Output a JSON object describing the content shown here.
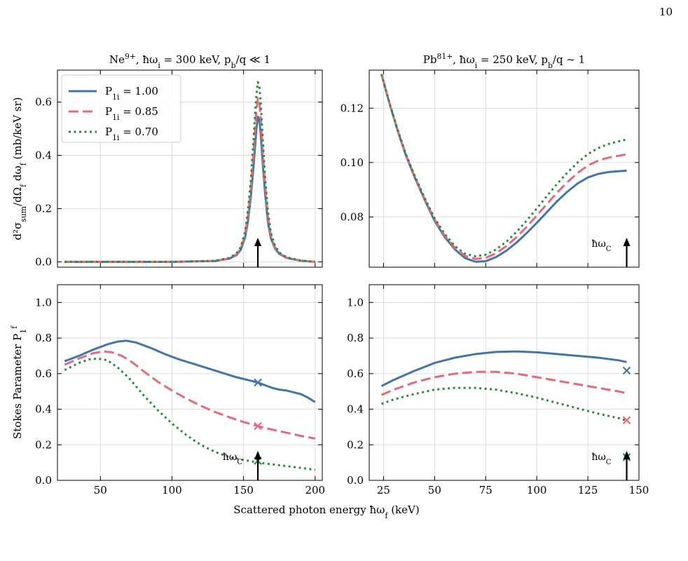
{
  "page_number": "10",
  "shared_xlabel": "Scattered photon energy ħω_f (keV)",
  "colors": {
    "p100": "#4575a8",
    "p085": "#e56a7c",
    "p070": "#2e8b3a"
  },
  "legend": {
    "location": "upper-left",
    "entries": [
      "P_1i = 1.00",
      "P_1i = 0.85",
      "P_1i = 0.70"
    ]
  },
  "chart_data": [
    {
      "id": "top-left",
      "type": "line",
      "title": "Ne^9+, ħω_i = 300 keV, p_b/q ≪ 1",
      "ylabel": "d²σ_sum/dΩ_f dω_f (mb/keV sr)",
      "xlim": [
        20,
        205
      ],
      "ylim": [
        -0.02,
        0.72
      ],
      "xticks": [
        50,
        100,
        150,
        200
      ],
      "show_xticklabels": false,
      "yticks": [
        0.0,
        0.2,
        0.4,
        0.6
      ],
      "ytick_labels": [
        "0.0",
        "0.2",
        "0.4",
        "0.6"
      ],
      "grid": true,
      "arrow": {
        "x": 160,
        "label": ""
      },
      "series": [
        {
          "name": "P_1i = 1.00",
          "color": "#4575a8",
          "dash": "solid",
          "x": [
            25,
            60,
            100,
            130,
            140,
            145,
            148,
            151,
            153,
            155,
            157,
            158,
            159,
            160,
            161,
            162,
            163,
            165,
            167,
            169,
            172,
            175,
            180,
            190,
            200
          ],
          "y": [
            0,
            0,
            0,
            0.003,
            0.012,
            0.025,
            0.045,
            0.09,
            0.15,
            0.24,
            0.36,
            0.43,
            0.5,
            0.545,
            0.535,
            0.48,
            0.4,
            0.26,
            0.15,
            0.09,
            0.05,
            0.03,
            0.015,
            0.004,
            0
          ]
        },
        {
          "name": "P_1i = 0.85",
          "color": "#e56a7c",
          "dash": "dashed",
          "x": [
            25,
            60,
            100,
            130,
            140,
            145,
            148,
            151,
            153,
            155,
            157,
            158,
            159,
            160,
            161,
            162,
            163,
            165,
            167,
            169,
            172,
            175,
            180,
            190,
            200
          ],
          "y": [
            0,
            0,
            0,
            0.003,
            0.013,
            0.028,
            0.05,
            0.1,
            0.17,
            0.27,
            0.41,
            0.49,
            0.57,
            0.615,
            0.6,
            0.54,
            0.45,
            0.29,
            0.17,
            0.1,
            0.055,
            0.032,
            0.016,
            0.004,
            0
          ]
        },
        {
          "name": "P_1i = 0.70",
          "color": "#2e8b3a",
          "dash": "dotted",
          "x": [
            25,
            60,
            100,
            130,
            140,
            145,
            148,
            151,
            153,
            155,
            157,
            158,
            159,
            160,
            161,
            162,
            163,
            165,
            167,
            169,
            172,
            175,
            180,
            190,
            200
          ],
          "y": [
            0,
            0,
            0,
            0.004,
            0.015,
            0.031,
            0.055,
            0.11,
            0.19,
            0.3,
            0.46,
            0.55,
            0.63,
            0.675,
            0.66,
            0.6,
            0.5,
            0.32,
            0.19,
            0.11,
            0.06,
            0.035,
            0.017,
            0.005,
            0
          ]
        }
      ]
    },
    {
      "id": "top-right",
      "type": "line",
      "title": "Pb^81+, ħω_i = 250 keV, p_b/q ∼ 1",
      "ylabel": "",
      "xlim": [
        18,
        150
      ],
      "ylim": [
        0.0615,
        0.134
      ],
      "xticks": [
        25,
        50,
        75,
        100,
        125,
        150
      ],
      "show_xticklabels": false,
      "yticks": [
        0.08,
        0.1,
        0.12
      ],
      "ytick_labels": [
        "0.08",
        "0.10",
        "0.12"
      ],
      "grid": true,
      "arrow": {
        "x": 144,
        "label": "ħω_C"
      },
      "series": [
        {
          "name": "P_1i = 1.00",
          "color": "#4575a8",
          "dash": "solid",
          "x": [
            24,
            28,
            32,
            36,
            40,
            45,
            50,
            55,
            60,
            65,
            70,
            75,
            80,
            85,
            90,
            95,
            100,
            105,
            110,
            115,
            120,
            125,
            130,
            135,
            140,
            144
          ],
          "y": [
            0.1325,
            0.1215,
            0.1115,
            0.1025,
            0.095,
            0.0865,
            0.0785,
            0.0725,
            0.068,
            0.0648,
            0.0635,
            0.0637,
            0.0652,
            0.0675,
            0.0705,
            0.074,
            0.0778,
            0.0818,
            0.0858,
            0.0893,
            0.0923,
            0.0945,
            0.0958,
            0.0965,
            0.0968,
            0.097
          ]
        },
        {
          "name": "P_1i = 0.85",
          "color": "#e56a7c",
          "dash": "dashed",
          "x": [
            24,
            28,
            32,
            36,
            40,
            45,
            50,
            55,
            60,
            65,
            70,
            75,
            80,
            85,
            90,
            95,
            100,
            105,
            110,
            115,
            120,
            125,
            130,
            135,
            140,
            144
          ],
          "y": [
            0.1325,
            0.1216,
            0.1117,
            0.1028,
            0.0953,
            0.0868,
            0.079,
            0.0731,
            0.0686,
            0.0656,
            0.0645,
            0.0649,
            0.0666,
            0.0692,
            0.0725,
            0.0763,
            0.0805,
            0.0848,
            0.089,
            0.0928,
            0.0962,
            0.0989,
            0.1007,
            0.1018,
            0.1025,
            0.103
          ]
        },
        {
          "name": "P_1i = 0.70",
          "color": "#2e8b3a",
          "dash": "dotted",
          "x": [
            24,
            28,
            32,
            36,
            40,
            45,
            50,
            55,
            60,
            65,
            70,
            75,
            80,
            85,
            90,
            95,
            100,
            105,
            110,
            115,
            120,
            125,
            130,
            135,
            140,
            144
          ],
          "y": [
            0.1325,
            0.1217,
            0.1119,
            0.103,
            0.0956,
            0.0872,
            0.0795,
            0.0737,
            0.0692,
            0.0664,
            0.0655,
            0.0661,
            0.068,
            0.0708,
            0.0744,
            0.0786,
            0.0831,
            0.0877,
            0.0922,
            0.0963,
            0.1,
            0.1031,
            0.1053,
            0.1068,
            0.1078,
            0.1085
          ]
        }
      ]
    },
    {
      "id": "bottom-left",
      "type": "line",
      "title": "",
      "ylabel": "Stokes Parameter P_1^(f)",
      "xlim": [
        20,
        205
      ],
      "ylim": [
        0.0,
        1.1
      ],
      "xticks": [
        50,
        100,
        150,
        200
      ],
      "xtick_labels": [
        "50",
        "100",
        "150",
        "200"
      ],
      "show_xticklabels": true,
      "yticks": [
        0.0,
        0.2,
        0.4,
        0.6,
        0.8,
        1.0
      ],
      "ytick_labels": [
        "0.0",
        "0.2",
        "0.4",
        "0.6",
        "0.8",
        "1.0"
      ],
      "grid": true,
      "arrow": {
        "x": 160,
        "label": "ħω_C"
      },
      "series": [
        {
          "name": "P_1i = 1.00",
          "color": "#4575a8",
          "dash": "solid",
          "x": [
            25,
            35,
            45,
            55,
            62,
            68,
            75,
            85,
            95,
            105,
            115,
            125,
            135,
            145,
            155,
            160,
            165,
            170,
            175,
            180,
            185,
            190,
            195,
            200
          ],
          "y": [
            0.67,
            0.7,
            0.735,
            0.765,
            0.78,
            0.785,
            0.775,
            0.745,
            0.71,
            0.68,
            0.655,
            0.63,
            0.605,
            0.58,
            0.56,
            0.55,
            0.535,
            0.52,
            0.51,
            0.505,
            0.495,
            0.485,
            0.465,
            0.44
          ]
        },
        {
          "name": "P_1i = 0.85",
          "color": "#e56a7c",
          "dash": "dashed",
          "x": [
            25,
            35,
            45,
            52,
            58,
            65,
            72,
            80,
            90,
            100,
            110,
            120,
            130,
            140,
            150,
            160,
            170,
            180,
            190,
            200
          ],
          "y": [
            0.65,
            0.685,
            0.715,
            0.725,
            0.72,
            0.7,
            0.665,
            0.615,
            0.555,
            0.505,
            0.46,
            0.42,
            0.385,
            0.355,
            0.328,
            0.305,
            0.285,
            0.268,
            0.25,
            0.235
          ]
        },
        {
          "name": "P_1i = 0.70",
          "color": "#2e8b3a",
          "dash": "dotted",
          "x": [
            25,
            35,
            42,
            48,
            55,
            62,
            70,
            80,
            90,
            100,
            110,
            120,
            130,
            140,
            150,
            160,
            170,
            180,
            190,
            200
          ],
          "y": [
            0.62,
            0.66,
            0.68,
            0.685,
            0.675,
            0.635,
            0.575,
            0.48,
            0.395,
            0.32,
            0.255,
            0.2,
            0.16,
            0.13,
            0.115,
            0.1,
            0.09,
            0.08,
            0.07,
            0.06
          ]
        }
      ],
      "markers": [
        {
          "x": 160,
          "y": 0.55,
          "color": "#4575a8"
        },
        {
          "x": 160,
          "y": 0.305,
          "color": "#e56a7c"
        },
        {
          "x": 160,
          "y": 0.11,
          "color": "#2e8b3a"
        }
      ]
    },
    {
      "id": "bottom-right",
      "type": "line",
      "title": "",
      "ylabel": "",
      "xlim": [
        18,
        150
      ],
      "ylim": [
        0.0,
        1.1
      ],
      "xticks": [
        25,
        50,
        75,
        100,
        125,
        150
      ],
      "xtick_labels": [
        "25",
        "50",
        "75",
        "100",
        "125",
        "150"
      ],
      "show_xticklabels": true,
      "yticks": [
        0.0,
        0.2,
        0.4,
        0.6,
        0.8,
        1.0
      ],
      "ytick_labels": [
        "0.0",
        "0.2",
        "0.4",
        "0.6",
        "0.8",
        "1.0"
      ],
      "grid": true,
      "arrow": {
        "x": 144,
        "label": "ħω_C"
      },
      "series": [
        {
          "name": "P_1i = 1.00",
          "color": "#4575a8",
          "dash": "solid",
          "x": [
            24,
            30,
            40,
            50,
            60,
            70,
            80,
            90,
            100,
            110,
            120,
            130,
            140,
            144
          ],
          "y": [
            0.53,
            0.565,
            0.615,
            0.66,
            0.69,
            0.71,
            0.722,
            0.725,
            0.72,
            0.71,
            0.7,
            0.69,
            0.675,
            0.665
          ]
        },
        {
          "name": "P_1i = 0.85",
          "color": "#e56a7c",
          "dash": "dashed",
          "x": [
            24,
            30,
            40,
            50,
            60,
            70,
            80,
            90,
            100,
            110,
            120,
            130,
            140,
            144
          ],
          "y": [
            0.48,
            0.51,
            0.55,
            0.58,
            0.6,
            0.61,
            0.61,
            0.6,
            0.58,
            0.56,
            0.54,
            0.52,
            0.5,
            0.49
          ]
        },
        {
          "name": "P_1i = 0.70",
          "color": "#2e8b3a",
          "dash": "dotted",
          "x": [
            24,
            30,
            40,
            50,
            60,
            70,
            80,
            90,
            100,
            110,
            120,
            130,
            140,
            144
          ],
          "y": [
            0.43,
            0.455,
            0.485,
            0.51,
            0.52,
            0.52,
            0.51,
            0.49,
            0.465,
            0.435,
            0.405,
            0.375,
            0.35,
            0.335
          ]
        }
      ],
      "markers": [
        {
          "x": 144,
          "y": 0.617,
          "color": "#4575a8"
        },
        {
          "x": 144,
          "y": 0.338,
          "color": "#e56a7c"
        },
        {
          "x": 144,
          "y": 0.13,
          "color": "#2e8b3a"
        }
      ]
    }
  ]
}
